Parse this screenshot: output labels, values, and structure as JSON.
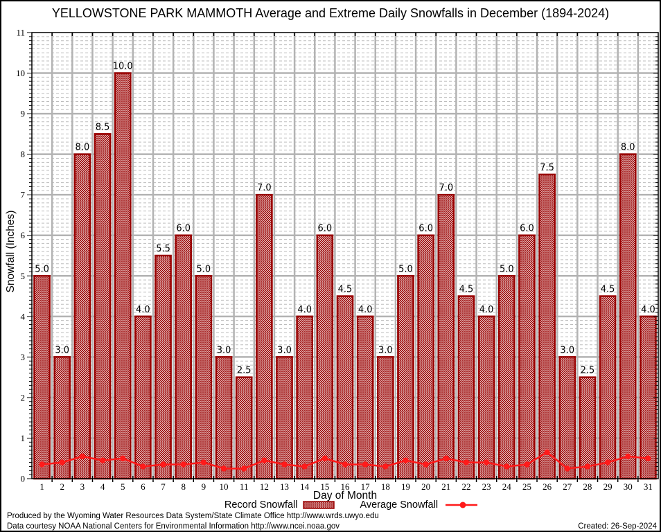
{
  "title": "YELLOWSTONE PARK MAMMOTH Average and Extreme Daily Snowfalls in December (1894-2024)",
  "axes": {
    "x_label": "Day of Month",
    "y_label": "Snowfall (Inches)"
  },
  "legend": {
    "record": "Record Snowfall",
    "average": "Average Snowfall"
  },
  "footer": {
    "line1": "Produced by the Wyoming Water Resources Data System/State Climate Office http://www.wrds.uwyo.edu",
    "line2": "Data courtesy NOAA National Centers for Environmental Information http://www.ncei.noaa.gov",
    "created": "Created: 26-Sep-2024"
  },
  "colors": {
    "bar_fill": "#990000",
    "bar_edge": "#990000",
    "avg_line": "#ff1a1a",
    "grid_major": "#b3b3b3",
    "grid_minor": "#bdbdbd",
    "axis": "#000000",
    "background": "#ffffff"
  },
  "chart_data": {
    "type": "bar",
    "title": "YELLOWSTONE PARK MAMMOTH Average and Extreme Daily Snowfalls in December (1894-2024)",
    "xlabel": "Day of Month",
    "ylabel": "Snowfall (Inches)",
    "categories": [
      1,
      2,
      3,
      4,
      5,
      6,
      7,
      8,
      9,
      10,
      11,
      12,
      13,
      14,
      15,
      16,
      17,
      18,
      19,
      20,
      21,
      22,
      23,
      24,
      25,
      26,
      27,
      28,
      29,
      30,
      31
    ],
    "series": [
      {
        "name": "Record Snowfall",
        "type": "bar",
        "values": [
          5.0,
          3.0,
          8.0,
          8.5,
          10.0,
          4.0,
          5.5,
          6.0,
          5.0,
          3.0,
          2.5,
          7.0,
          3.0,
          4.0,
          6.0,
          4.5,
          4.0,
          3.0,
          5.0,
          6.0,
          7.0,
          4.5,
          4.0,
          5.0,
          6.0,
          7.5,
          3.0,
          2.5,
          4.5,
          8.0,
          4.0
        ]
      },
      {
        "name": "Average Snowfall",
        "type": "line",
        "values": [
          0.35,
          0.4,
          0.55,
          0.45,
          0.5,
          0.3,
          0.35,
          0.35,
          0.4,
          0.25,
          0.25,
          0.45,
          0.35,
          0.3,
          0.5,
          0.35,
          0.35,
          0.3,
          0.45,
          0.35,
          0.5,
          0.4,
          0.4,
          0.3,
          0.35,
          0.65,
          0.25,
          0.3,
          0.4,
          0.55,
          0.5
        ]
      }
    ],
    "ylim": [
      0,
      11
    ],
    "y_major_step": 1,
    "y_minor_step": 0.1,
    "grid": true,
    "bar_value_labels": true,
    "legend_position": "bottom"
  }
}
